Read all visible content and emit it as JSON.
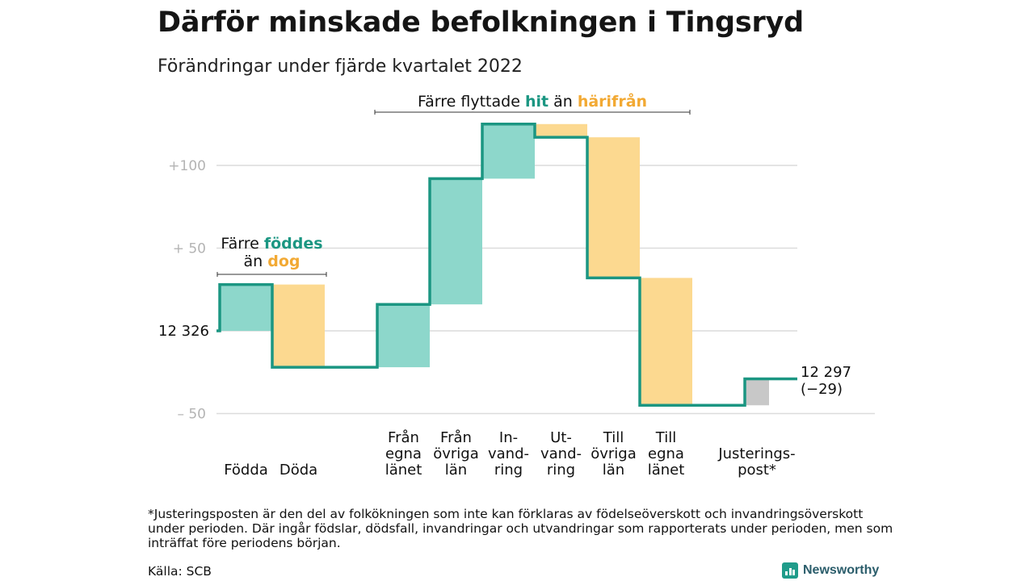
{
  "header": {
    "title": "Därför minskade befolkningen i Tingsryd",
    "subtitle": "Förändringar under fjärde kvartalet 2022"
  },
  "colors": {
    "up": "#8dd7cb",
    "down": "#fcd990",
    "adjust": "#c8c8c8",
    "line": "#1b9682",
    "hit": "#1b9682",
    "harifran": "#f2a933",
    "grid": "#dcdcdc",
    "tick": "#b4b4b4"
  },
  "chart_data": {
    "type": "waterfall",
    "start_label": "12 326",
    "end_label": "12 297",
    "end_change": "(−29)",
    "yticks": [
      {
        "value": -50,
        "label": "– 50"
      },
      {
        "value": 0,
        "label": ""
      },
      {
        "value": 50,
        "label": "+ 50"
      },
      {
        "value": 100,
        "label": "+100"
      }
    ],
    "ylim": [
      -55,
      125
    ],
    "steps": [
      {
        "category": "Födda",
        "lines": [
          "Födda"
        ],
        "start": 0,
        "end": 28,
        "kind": "up"
      },
      {
        "category": "Döda",
        "lines": [
          "Döda"
        ],
        "start": 28,
        "end": -22,
        "kind": "down"
      },
      {
        "category": "Från egna länet",
        "lines": [
          "Från",
          "egna",
          "länet"
        ],
        "start": -22,
        "end": 16,
        "kind": "up"
      },
      {
        "category": "Från övriga län",
        "lines": [
          "Från",
          "övriga",
          "län"
        ],
        "start": 16,
        "end": 92,
        "kind": "up"
      },
      {
        "category": "Invandring",
        "lines": [
          "In-",
          "vand-",
          "ring"
        ],
        "start": 92,
        "end": 125,
        "kind": "up"
      },
      {
        "category": "Utvandring",
        "lines": [
          "Ut-",
          "vand-",
          "ring"
        ],
        "start": 125,
        "end": 117,
        "kind": "down"
      },
      {
        "category": "Till övriga län",
        "lines": [
          "Till",
          "övriga",
          "län"
        ],
        "start": 117,
        "end": 32,
        "kind": "down"
      },
      {
        "category": "Till egna länet",
        "lines": [
          "Till",
          "egna",
          "länet"
        ],
        "start": 32,
        "end": -45,
        "kind": "down"
      },
      {
        "category": "Justeringspost*",
        "lines": [
          "Justerings-",
          "post*"
        ],
        "start": -45,
        "end": -29,
        "kind": "adjust"
      }
    ],
    "annotations": {
      "births": {
        "prefix": "Färre",
        "hit": "föddes",
        "mid": "än",
        "away": "dog"
      },
      "moves": {
        "prefix": "Färre flyttade",
        "hit": "hit",
        "mid": "än",
        "away": "härifrån"
      }
    }
  },
  "footnote": "*Justeringsposten är den del av folkökningen som inte kan förklaras av födelseöverskott och invandringsöverskott under perioden. Där ingår födslar, dödsfall, invandringar och utvandringar som rapporterats under perioden, men som inträffat före periodens början.",
  "source": "Källa: SCB",
  "brand": "Newsworthy"
}
